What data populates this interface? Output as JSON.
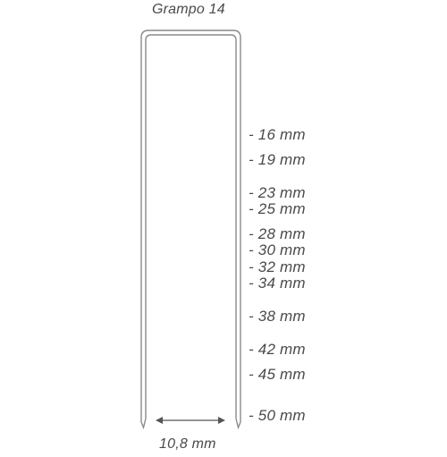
{
  "title": "Grampo 14",
  "width_label": "10,8 mm",
  "sizes": [
    {
      "label": "- 16 mm",
      "value": 16
    },
    {
      "label": "- 19 mm",
      "value": 19
    },
    {
      "label": "- 23 mm",
      "value": 23
    },
    {
      "label": "- 25 mm",
      "value": 25
    },
    {
      "label": "- 28 mm",
      "value": 28
    },
    {
      "label": "- 30 mm",
      "value": 30
    },
    {
      "label": "- 32 mm",
      "value": 32
    },
    {
      "label": "- 34 mm",
      "value": 34
    },
    {
      "label": "- 38 mm",
      "value": 38
    },
    {
      "label": "- 42 mm",
      "value": 42
    },
    {
      "label": "- 45 mm",
      "value": 45
    },
    {
      "label": "- 50 mm",
      "value": 50
    }
  ],
  "colors": {
    "staple_stroke": "#8a8a8a",
    "text": "#4a4a4a"
  }
}
